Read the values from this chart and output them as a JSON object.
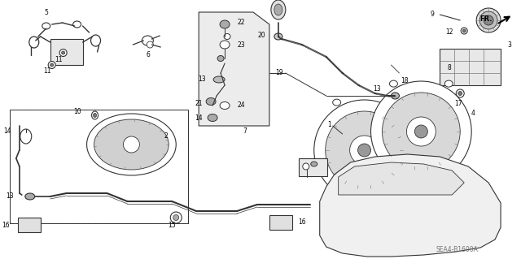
{
  "bg_color": "#ffffff",
  "fig_width": 6.4,
  "fig_height": 3.19,
  "dpi": 100,
  "watermark": "SEA4-B1600A",
  "fr_label": "FR."
}
